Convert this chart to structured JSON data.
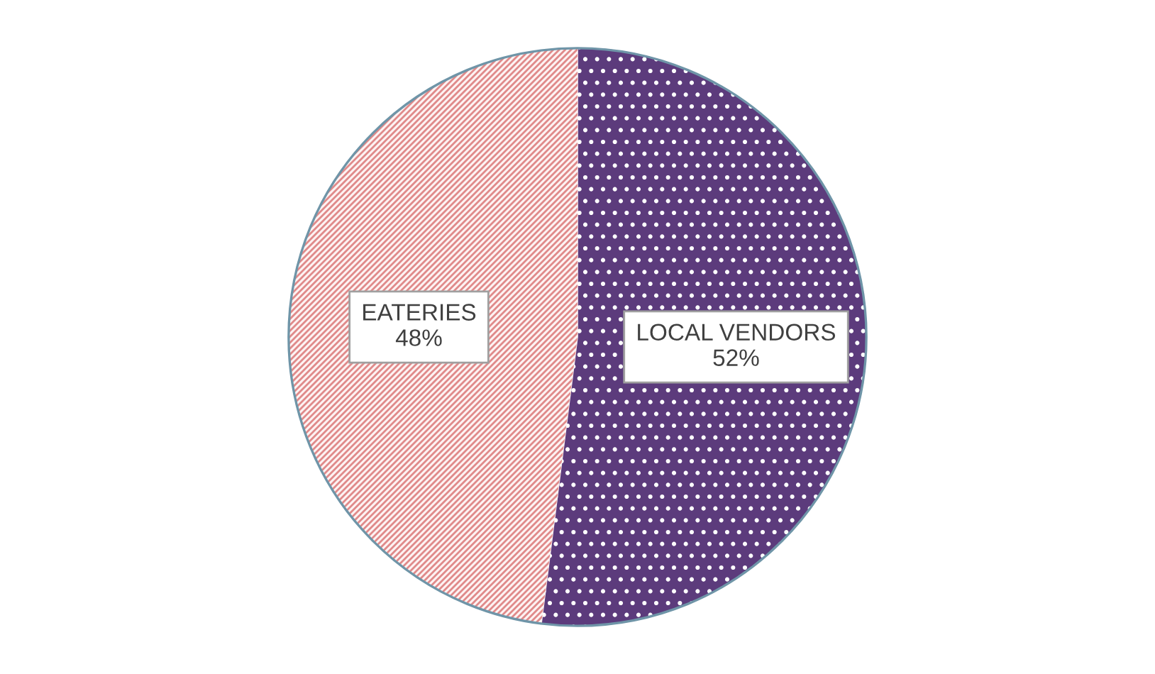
{
  "chart_data": {
    "type": "pie",
    "categories": [
      "LOCAL VENDORS",
      "EATERIES"
    ],
    "values": [
      52,
      48
    ],
    "value_labels": [
      "52%",
      "48%"
    ],
    "colors": [
      "#5c3b7c",
      "#fdf3f3"
    ],
    "legend": false
  }
}
